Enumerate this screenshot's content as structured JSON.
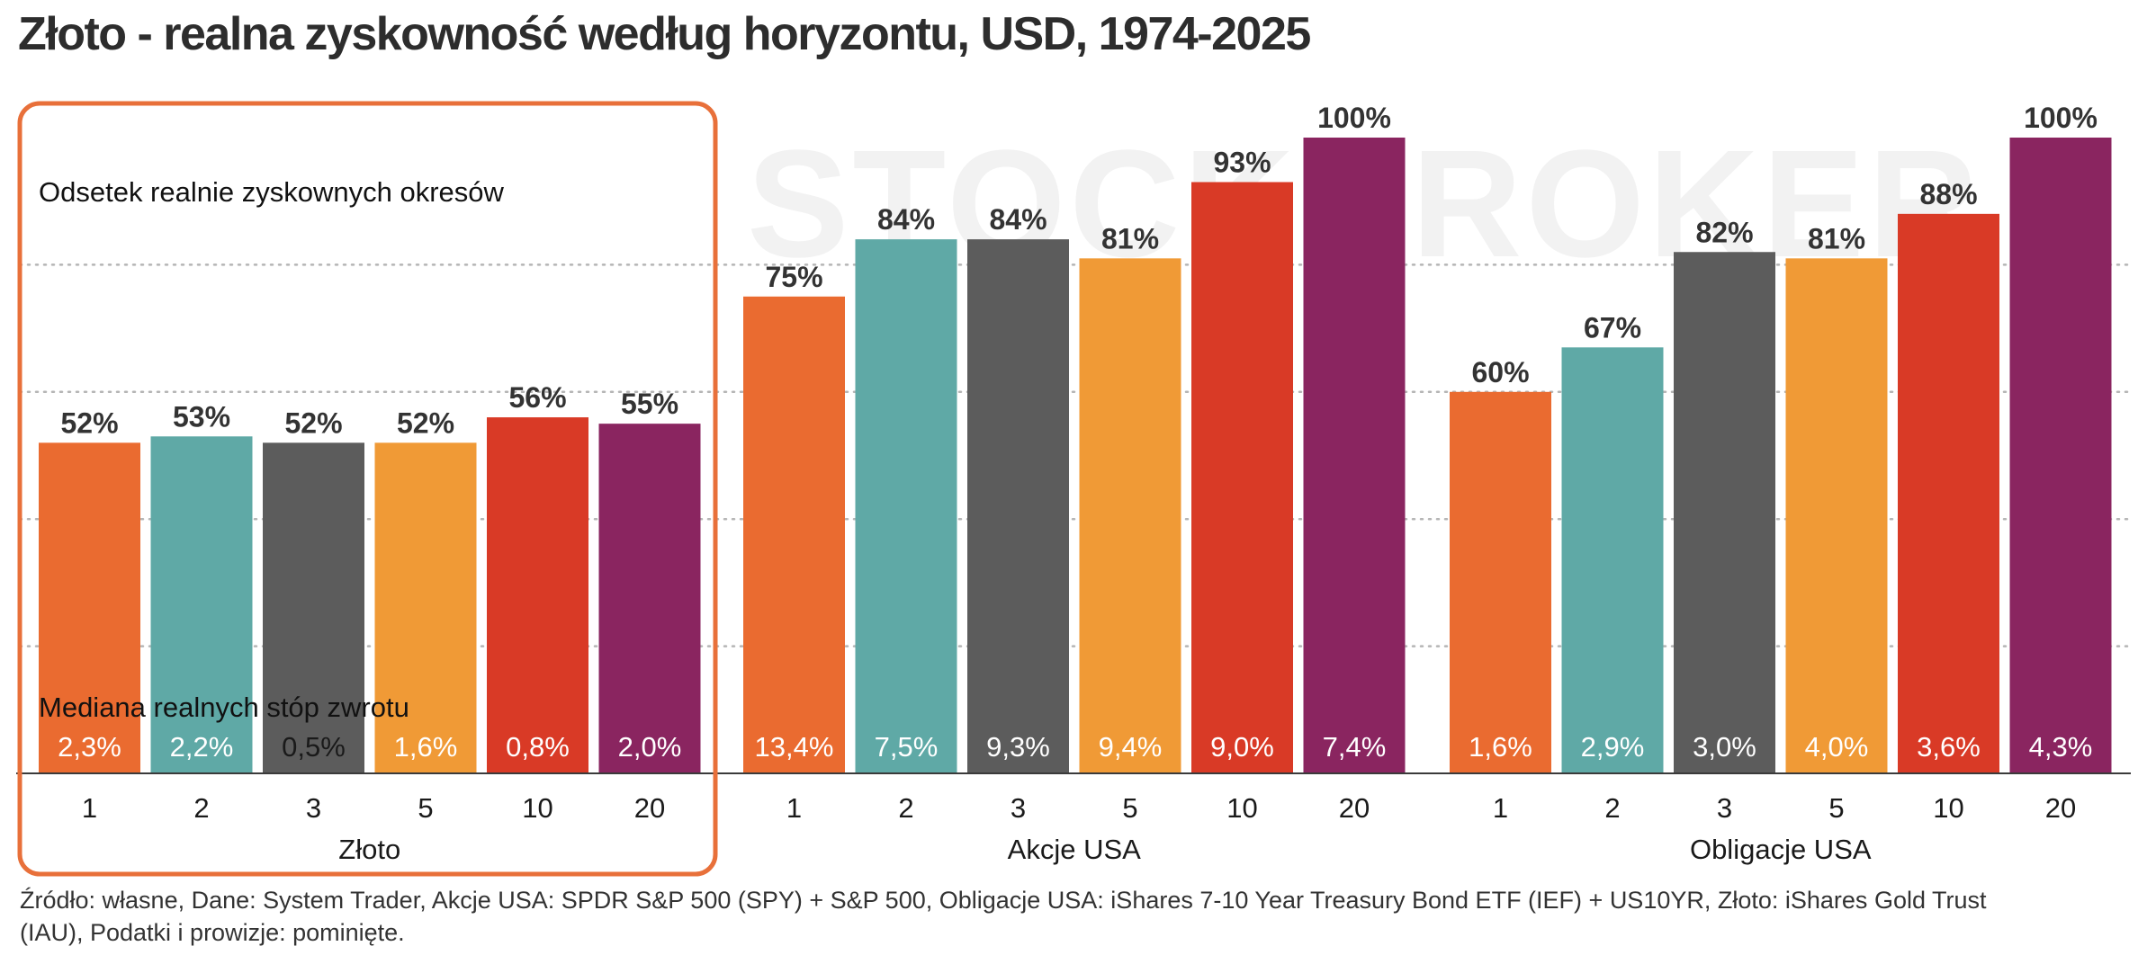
{
  "title": "Złoto - realna zyskowność według horyzontu, USD, 1974-2025",
  "watermark": "STOCKBROKER",
  "annotations": {
    "top_metric": "Odsetek realnie zyskownych okresów",
    "bottom_metric": "Mediana realnych stóp zwrotu"
  },
  "source_line_1": "Źródło: własne, Dane: System Trader, Akcje USA: SPDR S&P 500 (SPY) + S&P 500, Obligacje USA: iShares 7-10 Year Treasury Bond ETF (IEF) + US10YR, Złoto: iShares Gold Trust",
  "source_line_2": "(IAU), Podatki i prowizje: pominięte.",
  "colors": {
    "horizon_1": "#ea6b30",
    "horizon_2": "#5fa9a6",
    "horizon_3": "#5c5c5c",
    "horizon_5": "#f09a36",
    "horizon_10": "#d93a26",
    "horizon_20": "#8a2560",
    "highlight_box": "#e8703a",
    "gridline": "#b5b5b5"
  },
  "chart_data": {
    "type": "bar",
    "ylim": [
      0,
      100
    ],
    "grid": true,
    "highlighted_group": "Złoto",
    "groups": [
      {
        "name": "Złoto",
        "categories": [
          "1",
          "2",
          "3",
          "5",
          "10",
          "20"
        ],
        "values": [
          52,
          53,
          52,
          52,
          56,
          55
        ],
        "value_labels": [
          "52%",
          "53%",
          "52%",
          "52%",
          "56%",
          "55%"
        ],
        "median_labels": [
          "2,3%",
          "2,2%",
          "0,5%",
          "1,6%",
          "0,8%",
          "2,0%"
        ]
      },
      {
        "name": "Akcje USA",
        "categories": [
          "1",
          "2",
          "3",
          "5",
          "10",
          "20"
        ],
        "values": [
          75,
          84,
          84,
          81,
          93,
          100
        ],
        "value_labels": [
          "75%",
          "84%",
          "84%",
          "81%",
          "93%",
          "100%"
        ],
        "median_labels": [
          "13,4%",
          "7,5%",
          "9,3%",
          "9,4%",
          "9,0%",
          "7,4%"
        ]
      },
      {
        "name": "Obligacje USA",
        "categories": [
          "1",
          "2",
          "3",
          "5",
          "10",
          "20"
        ],
        "values": [
          60,
          67,
          82,
          81,
          88,
          100
        ],
        "value_labels": [
          "60%",
          "67%",
          "82%",
          "81%",
          "88%",
          "100%"
        ],
        "median_labels": [
          "1,6%",
          "2,9%",
          "3,0%",
          "4,0%",
          "3,6%",
          "4,3%"
        ]
      }
    ]
  }
}
